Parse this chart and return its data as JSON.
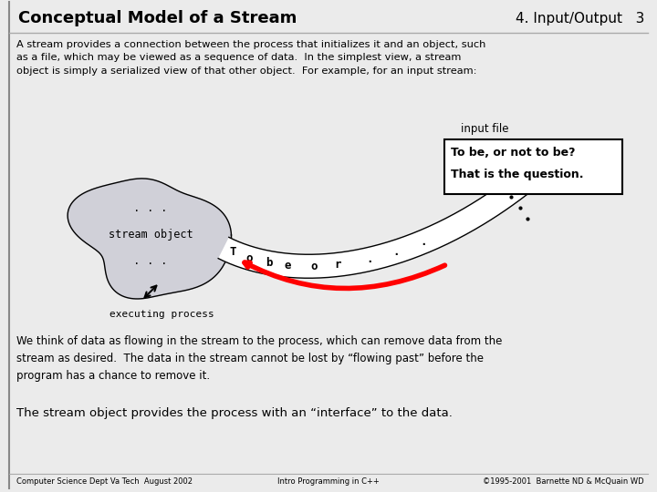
{
  "title": "Conceptual Model of a Stream",
  "subtitle_right": "4. Input/Output   3",
  "header_text": "A stream provides a connection between the process that initializes it and an object, such\nas a file, which may be viewed as a sequence of data.  In the simplest view, a stream\nobject is simply a serialized view of that other object.  For example, for an input stream:",
  "blob_label": "stream object",
  "blob_dots_top": ". . .",
  "blob_dots_bottom": ". . .",
  "input_file_label": "input file",
  "box_line1": "To be, or not to be?",
  "box_line2": "That is the question.",
  "process_label": "executing process",
  "para_text": "We think of data as flowing in the stream to the process, which can remove data from the\nstream as desired.  The data in the stream cannot be lost by “flowing past” before the\nprogram has a chance to remove it.",
  "bottom_text": "The stream object provides the process with an “interface” to the data.",
  "footer_left": "Computer Science Dept Va Tech  August 2002",
  "footer_center": "Intro Programming in C++",
  "footer_right": "©1995-2001  Barnette ND & McQuain WD",
  "bg_color": "#ebebeb",
  "blob_color": "#d0d0d8",
  "box_bg": "#ffffff"
}
